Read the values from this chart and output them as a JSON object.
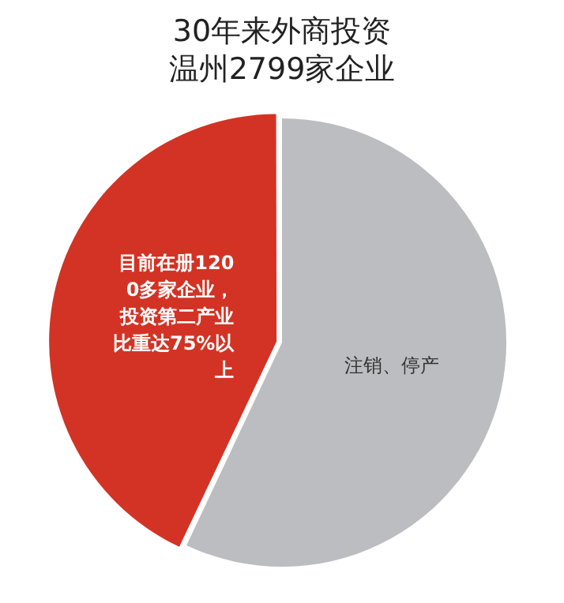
{
  "chart_data": {
    "type": "pie",
    "title": "30年来外商投资温州2799家企业",
    "categories": [
      "目前在册1200多家企业，投资第二产业比重达75%以上",
      "注销、停产"
    ],
    "values": [
      43,
      57
    ],
    "colors": [
      "#d33324",
      "#bcbdc0"
    ],
    "legend": false
  }
}
